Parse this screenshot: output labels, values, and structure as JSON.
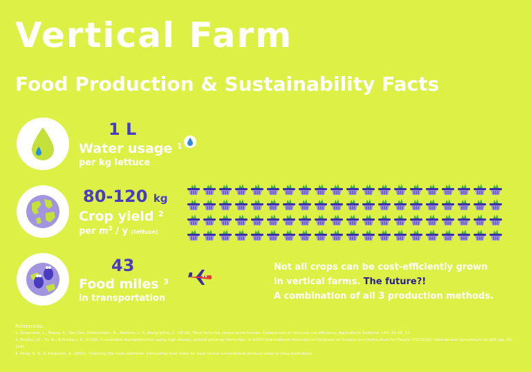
{
  "header": {
    "title": "Vertical Farm",
    "subtitle": "Food Production & Sustainability Facts"
  },
  "facts": [
    {
      "value": "1 L",
      "label": "Water usage",
      "ref": "1",
      "sub": "per kg lettuce",
      "icon": "water-drop-icon"
    },
    {
      "value": "80-120",
      "unit": "kg",
      "label": "Crop yield",
      "ref": "2",
      "sub_pre": "per m",
      "sub_exp": "2",
      "sub_post": " / y",
      "sub_note": "(lettuce)",
      "icon": "globe-icon",
      "basket_count": 80
    },
    {
      "value": "43",
      "label": "Food miles",
      "ref": "3",
      "sub": "in transportation",
      "icon": "footprints-globe-icon",
      "plane_icon": "airplane-icon"
    }
  ],
  "note": {
    "line1": "Not all crops can be cost-efficiently grown",
    "line2_pre": "in vertical farms. ",
    "line2_highlight": "The future?!",
    "line3": "A combination of all 3 production methods."
  },
  "references": {
    "heading": "References:",
    "items": [
      "1.  Graamans, L., Baeza, E., Van Den Dobbelsteen, A., Tsafaras, I., & Stanghellini, C. (2018). Plant factories versus greenhouses: Comparison of resource use efficiency. Agricultural Systems, 160, 31-43. 12.",
      "2.  Bayley, J.E., Yu, M., & Frediani, K. (2010). Sustainable food production using high density vertical growing (Verticrop). In XXVIII International Horticultural Congress on Science and Horticulture for People (IHC2010): International Symposium on 921 (pp. 95-104).",
      "3.  Pirog, R. S., & Benjamin, A. (2003). Checking the food odometer: Comparing food miles for local versus conventional produce sales to Iowa institutions."
    ]
  },
  "colors": {
    "background": "#dcf046",
    "accent": "#4a3cbf",
    "highlight": "#2a1f8f",
    "text": "#ffffff"
  }
}
